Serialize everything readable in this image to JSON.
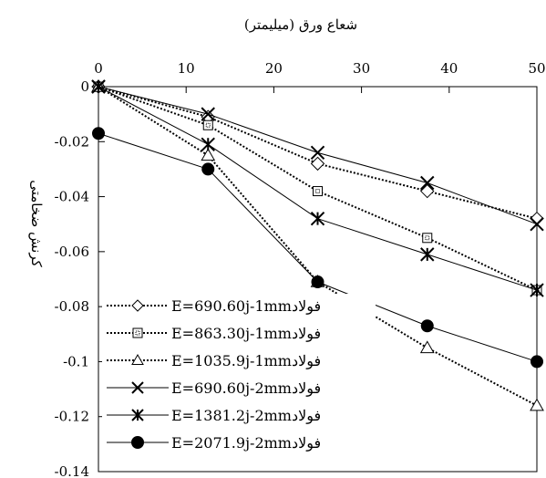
{
  "chart_data": {
    "type": "line",
    "title": "",
    "xlabel": "شعاع ورق (میلیمتر)",
    "ylabel": "کرنش ضخامتی",
    "x_axis_position": "top",
    "xlim": [
      0,
      50
    ],
    "ylim": [
      -0.14,
      0
    ],
    "xticks": [
      0,
      10,
      20,
      30,
      40,
      50
    ],
    "xtick_labels": [
      "0",
      "10",
      "20",
      "30",
      "40",
      "50"
    ],
    "yticks": [
      0,
      -0.02,
      -0.04,
      -0.06,
      -0.08,
      -0.1,
      -0.12,
      -0.14
    ],
    "ytick_labels": [
      "0",
      "-0.02",
      "-0.04",
      "-0.06",
      "-0.08",
      "-0.1",
      "-0.12",
      "-0.14"
    ],
    "grid": false,
    "legend_position": "bottom-left",
    "series": [
      {
        "name": "E=690.60j-1mmفولاد",
        "marker": "diamond-open",
        "line_style": "dotted",
        "x": [
          0,
          12.5,
          25,
          37.5,
          50
        ],
        "y": [
          0,
          -0.011,
          -0.028,
          -0.038,
          -0.048
        ]
      },
      {
        "name": "E=863.30j-1mmفولاد",
        "marker": "square-dotted",
        "line_style": "dotted",
        "x": [
          0,
          12.5,
          25,
          37.5,
          50
        ],
        "y": [
          0,
          -0.014,
          -0.038,
          -0.055,
          -0.074
        ]
      },
      {
        "name": "E=1035.9j-1mmفولاد",
        "marker": "triangle-open",
        "line_style": "dotted",
        "x": [
          0,
          12.5,
          25,
          37.5,
          50
        ],
        "y": [
          0,
          -0.025,
          -0.071,
          -0.095,
          -0.116
        ]
      },
      {
        "name": "E=690.60j-2mmفولاد",
        "marker": "x",
        "line_style": "solid",
        "x": [
          0,
          12.5,
          25,
          37.5,
          50
        ],
        "y": [
          0,
          -0.01,
          -0.024,
          -0.035,
          -0.05
        ]
      },
      {
        "name": "E=1381.2j-2mmفولاد",
        "marker": "asterisk",
        "line_style": "solid",
        "x": [
          0,
          12.5,
          25,
          37.5,
          50
        ],
        "y": [
          0,
          -0.021,
          -0.048,
          -0.061,
          -0.074
        ]
      },
      {
        "name": "E=2071.9j-2mmفولاد",
        "marker": "circle-filled",
        "line_style": "solid",
        "x": [
          0,
          12.5,
          25,
          37.5,
          50
        ],
        "y": [
          -0.017,
          -0.03,
          -0.071,
          -0.087,
          -0.1
        ]
      }
    ]
  }
}
